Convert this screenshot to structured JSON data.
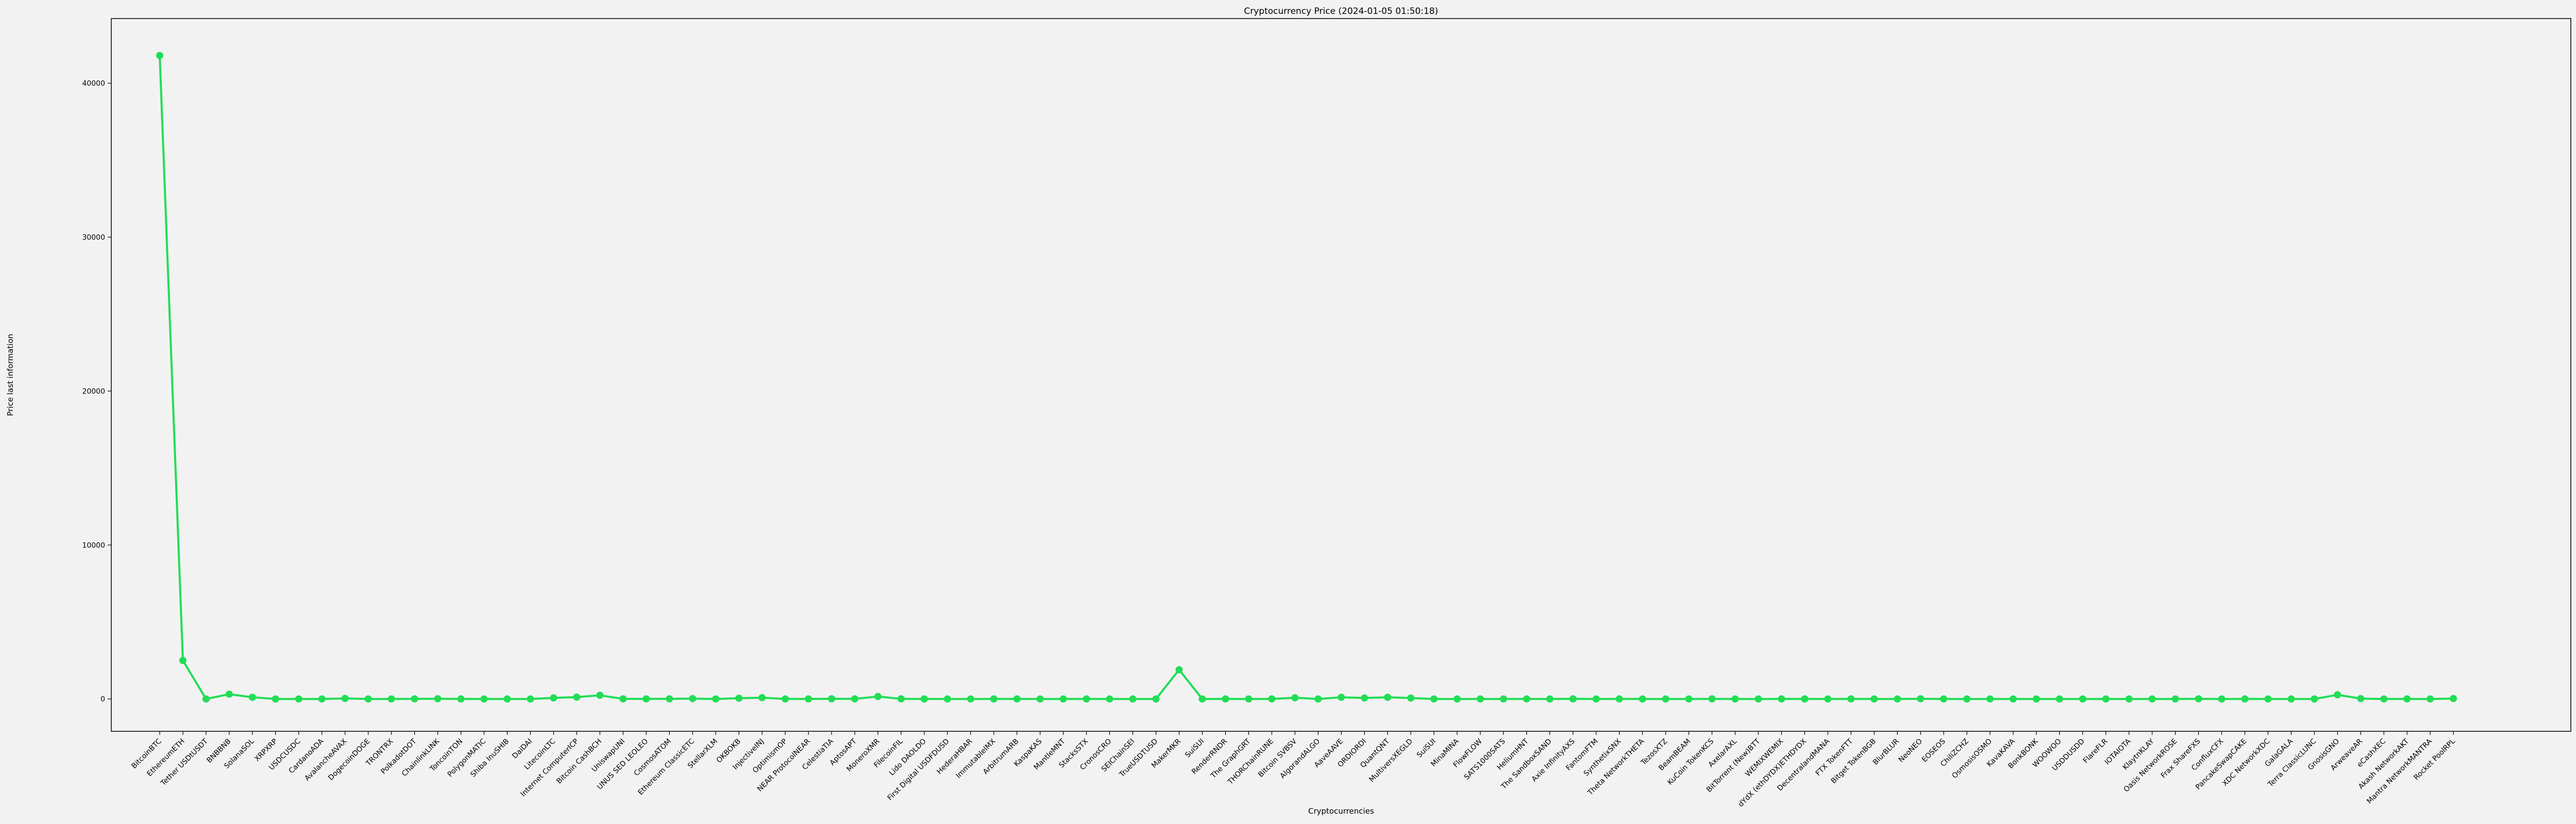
{
  "chart_data": {
    "type": "line",
    "title": "Cryptocurrency Price (2024-01-05 01:50:18)",
    "xlabel": "Cryptocurrencies",
    "ylabel": "Price last information",
    "ylim": [
      -2100,
      44200
    ],
    "yticks": [
      0,
      10000,
      20000,
      30000,
      40000
    ],
    "grid": false,
    "line_color": "#22dd55",
    "marker": "circle",
    "categories": [
      "BitcoinBTC",
      "EthereumETH",
      "Tether USDtUSDT",
      "BNBBNB",
      "SolanaSOL",
      "XRPXRP",
      "USDCUSDC",
      "CardanoADA",
      "AvalancheAVAX",
      "DogecoinDOGE",
      "TRONTRX",
      "PolkadotDOT",
      "ChainlinkLINK",
      "ToncoinTON",
      "PolygonMATIC",
      "Shiba InuSHIB",
      "DaiDAI",
      "LitecoinLTC",
      "Internet ComputerICP",
      "Bitcoin CashBCH",
      "UniswapUNI",
      "UNUS SED LEOLEO",
      "CosmosATOM",
      "Ethereum ClassicETC",
      "StellarXLM",
      "OKBOKB",
      "InjectiveINJ",
      "OptimismOP",
      "NEAR ProtocolNEAR",
      "CelestiaTIA",
      "AptosAPT",
      "MoneroXMR",
      "FilecoinFIL",
      "Lido DAOLDO",
      "First Digital USDFDUSD",
      "HederaHBAR",
      "ImmutableIMX",
      "ArbitrumARB",
      "KaspaKAS",
      "MantleMNT",
      "StacksSTX",
      "CronosCRO",
      "SEIChainSEI",
      "TrueUSDTUSD",
      "MakerMKR",
      "SuiSUI",
      "RenderRNDR",
      "The GraphGRT",
      "THORChainRUNE",
      "Bitcoin SVBSV",
      "AlgorandALGO",
      "AaveAAVE",
      "ORDIORDI",
      "QuantQNT",
      "MultiversXEGLD",
      "SuiSUI",
      "MinaMINA",
      "FlowFLOW",
      "SATS1000SATS",
      "HeliumHNT",
      "The SandboxSAND",
      "Axie InfinityAXS",
      "FantomFTM",
      "SynthetixSNX",
      "Theta NetworkTHETA",
      "TezosXTZ",
      "BeamBEAM",
      "KuCoin TokenKCS",
      "AxelarAXL",
      "BitTorrent (New)BTT",
      "WEMIXWEMIX",
      "dYdX (ethDYDX)ETHDYDX",
      "DecentralandMANA",
      "FTX TokenFTT",
      "Bitget TokenBGB",
      "BlurBLUR",
      "NeoNEO",
      "EOSEOS",
      "ChiliZCHZ",
      "OsmosisOSMO",
      "KavaKAVA",
      "BonkBONK",
      "WOOWOO",
      "USDDUSDD",
      "FlareFLR",
      "IOTAIOTA",
      "KlaytnKLAY",
      "Oasis NetworkROSE",
      "Frax ShareFXS",
      "ConfluxCFX",
      "PancakeSwapCAKE",
      "XDC NetworkXDC",
      "GalaGALA",
      "Terra ClassicLUNC",
      "GnosisGNO",
      "ArweaveAR",
      "eCashXEC",
      "Akash NetworkAKT",
      "Mantra NetworkMANTRA",
      "Rocket PoolRPL"
    ],
    "values": [
      41800,
      2500,
      1,
      310,
      110,
      0.6,
      1,
      0.55,
      37,
      0.08,
      0.1,
      7.6,
      14,
      2.3,
      0.8,
      1e-05,
      1,
      70,
      120,
      240,
      6,
      3.9,
      9.6,
      25,
      0.12,
      50,
      85,
      3.3,
      3.4,
      12,
      9,
      160,
      6,
      3.1,
      1,
      0.08,
      2,
      1.9,
      0.12,
      0.56,
      1.5,
      0.09,
      0.6,
      1,
      1900,
      0.8,
      4,
      0.16,
      5,
      80,
      0.2,
      110,
      65,
      110,
      60,
      0.8,
      1,
      0.8,
      0.0004,
      4,
      0.5,
      7,
      0.4,
      3.5,
      1.1,
      1.2,
      0.02,
      6,
      0.8,
      1e-06,
      2.2,
      3,
      0.47,
      4,
      0.6,
      0.5,
      13,
      0.75,
      0.1,
      1.2,
      0.8,
      1e-05,
      0.35,
      1,
      0.02,
      0.28,
      0.3,
      0.09,
      9.5,
      0.2,
      2.3,
      0.05,
      0.02,
      0.0001,
      270,
      25,
      5e-05,
      2.2,
      0.6,
      30
    ]
  }
}
